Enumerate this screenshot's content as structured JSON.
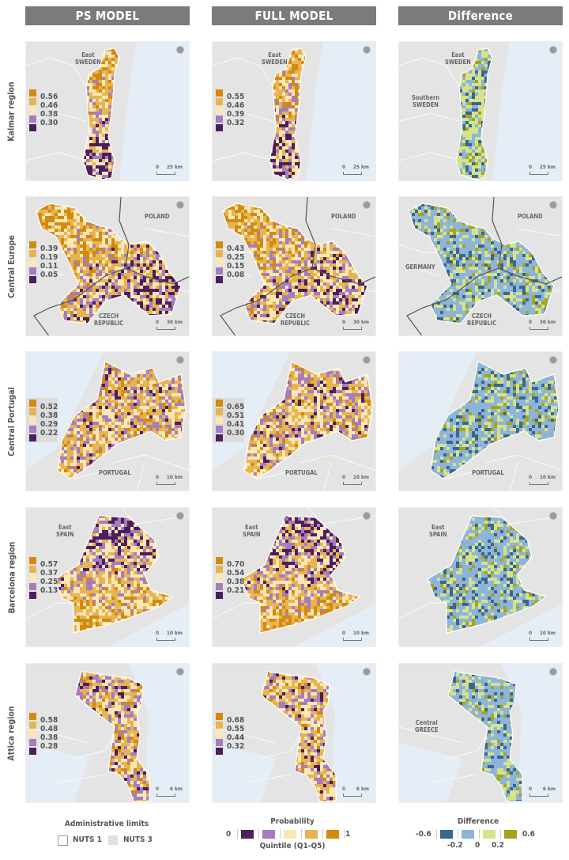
{
  "columns": [
    "PS MODEL",
    "FULL MODEL",
    "Difference"
  ],
  "rows": [
    {
      "label": "Kalmar region",
      "ps": {
        "legend": [
          "0.56",
          "0.46",
          "0.38",
          "0.30"
        ],
        "labels": [
          "East\nSWEDEN"
        ],
        "scale": {
          "start": "0",
          "end": "25 km"
        }
      },
      "full": {
        "legend": [
          "0.55",
          "0.46",
          "0.39",
          "0.32"
        ],
        "labels": [
          "East\nSWEDEN"
        ],
        "scale": {
          "start": "0",
          "end": "25 km"
        }
      },
      "diff": {
        "labels": [
          "East\nSWEDEN",
          "Southern\nSWEDEN"
        ],
        "scale": {
          "start": "0",
          "end": "25 km"
        }
      }
    },
    {
      "label": "Central Europe",
      "ps": {
        "legend": [
          "0.39",
          "0.19",
          "0.11",
          "0.05"
        ],
        "labels": [
          "POLAND",
          "CZECH\nREPUBLIC"
        ],
        "scale": {
          "start": "0",
          "end": "30 km"
        }
      },
      "full": {
        "legend": [
          "0.43",
          "0.25",
          "0.15",
          "0.08"
        ],
        "labels": [
          "POLAND",
          "CZECH\nREPUBLIC"
        ],
        "scale": {
          "start": "0",
          "end": "30 km"
        }
      },
      "diff": {
        "labels": [
          "POLAND",
          "GERMANY",
          "CZECH\nREPUBLIC"
        ],
        "scale": {
          "start": "0",
          "end": "30 km"
        }
      }
    },
    {
      "label": "Central Portugal",
      "ps": {
        "legend": [
          "0.52",
          "0.38",
          "0.29",
          "0.22"
        ],
        "labels": [
          "PORTUGAL"
        ],
        "scale": {
          "start": "0",
          "end": "10 km"
        }
      },
      "full": {
        "legend": [
          "0.65",
          "0.51",
          "0.41",
          "0.30"
        ],
        "labels": [
          "PORTUGAL"
        ],
        "scale": {
          "start": "0",
          "end": "10 km"
        }
      },
      "diff": {
        "labels": [
          "PORTUGAL"
        ],
        "scale": {
          "start": "0",
          "end": "10 km"
        }
      }
    },
    {
      "label": "Barcelona region",
      "ps": {
        "legend": [
          "0.57",
          "0.37",
          "0.25",
          "0.13"
        ],
        "labels": [
          "East\nSPAIN"
        ],
        "scale": {
          "start": "0",
          "end": "10 km"
        }
      },
      "full": {
        "legend": [
          "0.70",
          "0.54",
          "0.38",
          "0.21"
        ],
        "labels": [
          "East\nSPAIN"
        ],
        "scale": {
          "start": "0",
          "end": "10 km"
        }
      },
      "diff": {
        "labels": [
          "East\nSPAIN"
        ],
        "scale": {
          "start": "0",
          "end": "10 km"
        }
      }
    },
    {
      "label": "Attica region",
      "ps": {
        "legend": [
          "0.58",
          "0.48",
          "0.38",
          "0.28"
        ],
        "labels": [],
        "scale": {
          "start": "0",
          "end": "6 km"
        }
      },
      "full": {
        "legend": [
          "0.68",
          "0.55",
          "0.44",
          "0.32"
        ],
        "labels": [],
        "scale": {
          "start": "0",
          "end": "6 km"
        }
      },
      "diff": {
        "labels": [
          "Central\nGREECE"
        ],
        "scale": {
          "start": "0",
          "end": "6 km"
        }
      }
    }
  ],
  "colors": {
    "quintiles": [
      "#4b1f5e",
      "#a57cc0",
      "#fbe7b5",
      "#e7b452",
      "#d38a0f"
    ],
    "difference": [
      "#3c6690",
      "#8db4d9",
      "#d5e38a",
      "#a5a51c"
    ],
    "land": "#e4e4e4",
    "sea": "#e5edf7",
    "header": "#7b7b7b"
  },
  "bottom_legends": {
    "admin": {
      "title": "Administrative limits",
      "nuts1": "NUTS 1",
      "nuts3": "NUTS 3"
    },
    "probability": {
      "title": "Probability",
      "min": "0",
      "max": "1",
      "subtitle": "Quintile (Q1-Q5)"
    },
    "difference": {
      "title": "Difference",
      "min": "-0.6",
      "max": "0.6",
      "ticks": [
        "-0.2",
        "0",
        "0.2"
      ]
    }
  }
}
